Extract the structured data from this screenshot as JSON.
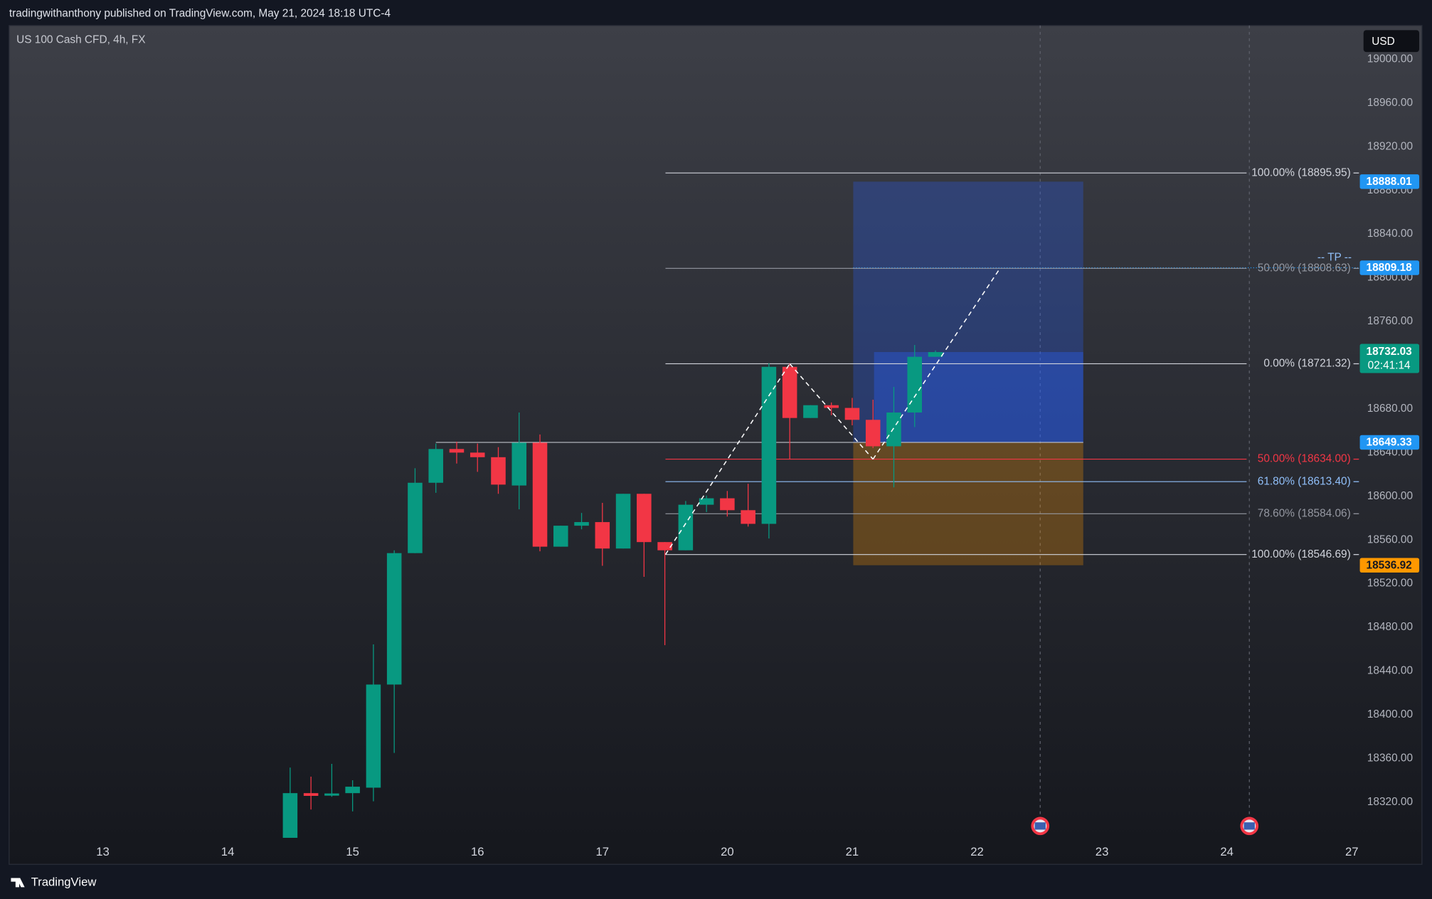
{
  "header": {
    "publisher": "tradingwithanthony published on TradingView.com, May 21, 2024 18:18 UTC-4",
    "brand": "TradingView",
    "currency": "USD"
  },
  "chart_data": {
    "type": "candlestick",
    "title": "US 100 Cash CFD, 4h, FX",
    "x": [
      0,
      1,
      2,
      3,
      4,
      5,
      6,
      7,
      8,
      9,
      10,
      11,
      12,
      13,
      14,
      15,
      16,
      17,
      18,
      19,
      20,
      21,
      22,
      23,
      24,
      25,
      26,
      27,
      28,
      29,
      30,
      31
    ],
    "open": [
      18287.4,
      18328.3,
      18326.0,
      18328.3,
      18333.3,
      18427.7,
      18548.0,
      18612.4,
      18643.3,
      18640.0,
      18635.8,
      18609.9,
      18649.1,
      18553.9,
      18573.1,
      18576.4,
      18552.2,
      18602.3,
      18558.1,
      18550.6,
      18592.3,
      18598.2,
      18587.3,
      18574.8,
      18718.5,
      18671.7,
      18683.4,
      18680.9,
      18670.0,
      18645.8,
      18676.7,
      18727.7
    ],
    "high": [
      18351.7,
      18343.4,
      18355.1,
      18340.1,
      18464.5,
      18550.6,
      18625.7,
      18648.3,
      18650.0,
      18648.3,
      18645.0,
      18676.7,
      18656.6,
      18573.1,
      18584.8,
      18594.0,
      18602.3,
      18602.3,
      18558.1,
      18595.7,
      18600.7,
      18604.9,
      18611.5,
      18721.8,
      18721.8,
      18683.4,
      18685.9,
      18690.1,
      18688.4,
      18700.1,
      18738.5,
      18733.5
    ],
    "low": [
      18287.4,
      18313.3,
      18325.0,
      18311.6,
      18320.8,
      18365.1,
      18548.0,
      18603.2,
      18630.0,
      18622.4,
      18602.3,
      18588.1,
      18549.7,
      18553.9,
      18569.8,
      18536.4,
      18552.2,
      18526.3,
      18463.7,
      18550.6,
      18585.6,
      18581.5,
      18572.3,
      18561.4,
      18634.1,
      18671.7,
      18674.2,
      18665.0,
      18644.1,
      18608.2,
      18663.4,
      18727.7
    ],
    "close": [
      18328.3,
      18325.8,
      18328.0,
      18334.2,
      18427.7,
      18548.0,
      18612.4,
      18643.3,
      18640.0,
      18635.8,
      18610.7,
      18649.1,
      18553.9,
      18573.1,
      18576.4,
      18552.2,
      18602.3,
      18558.1,
      18550.6,
      18592.3,
      18598.2,
      18587.3,
      18574.8,
      18718.5,
      18671.7,
      18683.4,
      18680.9,
      18670.0,
      18645.8,
      18676.7,
      18727.7,
      18732.0
    ],
    "up_color": "#089981",
    "down_color": "#f23645",
    "xlim": [
      -13.5,
      51.3
    ],
    "xticks": [
      {
        "value": -9,
        "label": "13"
      },
      {
        "value": -3,
        "label": "14"
      },
      {
        "value": 3,
        "label": "15"
      },
      {
        "value": 9,
        "label": "16"
      },
      {
        "value": 15,
        "label": "17"
      },
      {
        "value": 21,
        "label": "20"
      },
      {
        "value": 27,
        "label": "21"
      },
      {
        "value": 33,
        "label": "22"
      },
      {
        "value": 39,
        "label": "23"
      },
      {
        "value": 45,
        "label": "24"
      },
      {
        "value": 51,
        "label": "27"
      }
    ],
    "ylim": [
      18285.7,
      19030.9
    ],
    "yticks": [
      {
        "value": 18320,
        "label": "18320.00"
      },
      {
        "value": 18360,
        "label": "18360.00"
      },
      {
        "value": 18400,
        "label": "18400.00"
      },
      {
        "value": 18440,
        "label": "18440.00"
      },
      {
        "value": 18480,
        "label": "18480.00"
      },
      {
        "value": 18520,
        "label": "18520.00"
      },
      {
        "value": 18560,
        "label": "18560.00"
      },
      {
        "value": 18600,
        "label": "18600.00"
      },
      {
        "value": 18640,
        "label": "18640.00"
      },
      {
        "value": 18680,
        "label": "18680.00"
      },
      {
        "value": 18720,
        "label": "18720.00"
      },
      {
        "value": 18760,
        "label": "18760.00"
      },
      {
        "value": 18800,
        "label": "18800.00"
      },
      {
        "value": 18840,
        "label": "18840.00"
      },
      {
        "value": 18880,
        "label": "18880.00"
      },
      {
        "value": 18920,
        "label": "18920.00"
      },
      {
        "value": 18960,
        "label": "18960.00"
      },
      {
        "value": 19000,
        "label": "19000.00"
      }
    ],
    "grid": false,
    "fib_levels": [
      {
        "value": 18895.95,
        "label": "100.00% (18895.95)",
        "color": "#d1d4dc"
      },
      {
        "value": 18808.63,
        "label": "50.00% (18808.63)",
        "color": "#9598a1"
      },
      {
        "value": 18721.32,
        "label": "0.00% (18721.32)",
        "color": "#d1d4dc"
      },
      {
        "value": 18634.0,
        "label": "50.00% (18634.00)",
        "color": "#f23645"
      },
      {
        "value": 18613.4,
        "label": "61.80% (18613.40)",
        "color": "#90bff9"
      },
      {
        "value": 18584.06,
        "label": "78.60% (18584.06)",
        "color": "#9598a1"
      },
      {
        "value": 18546.69,
        "label": "100.00% (18546.69)",
        "color": "#d1d4dc"
      }
    ],
    "position": {
      "target": 18888.01,
      "entry": 18649.33,
      "stop": 18536.92,
      "take_profit": 18809.18,
      "take_profit_label": "-- TP --"
    },
    "last_price": 18732.03,
    "countdown": "02:41:14"
  }
}
